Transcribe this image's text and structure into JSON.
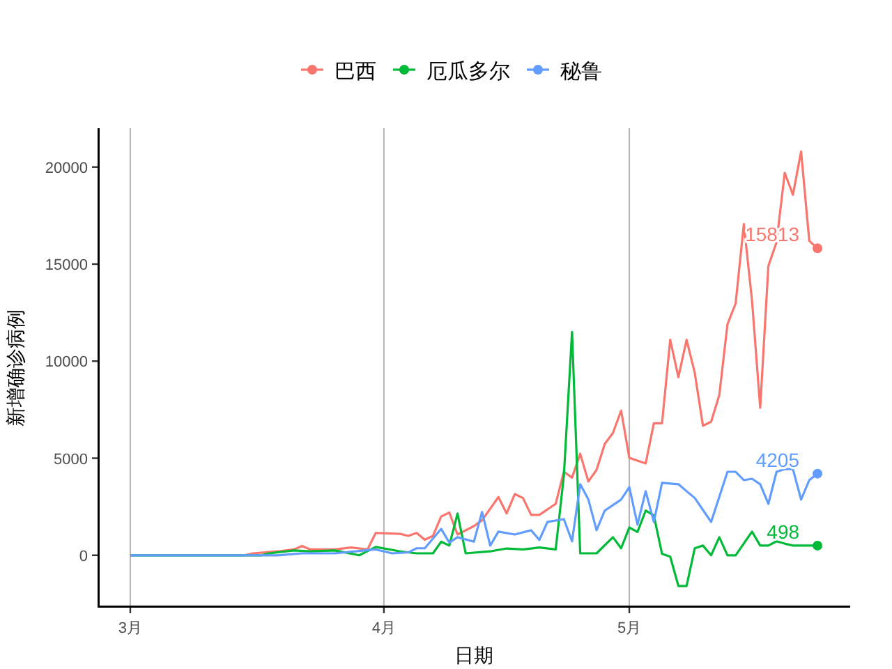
{
  "chart_data": {
    "type": "line",
    "xlabel": "日期",
    "ylabel": "新增确诊病例",
    "legend": "top",
    "grid": "x",
    "xlim": [
      "--02-25",
      "--05-28"
    ],
    "ylim": [
      -2700,
      22000
    ],
    "xticks": [
      {
        "value": "--03-01",
        "label": "3月"
      },
      {
        "value": "--04-01",
        "label": "4月"
      },
      {
        "value": "--05-01",
        "label": "5月"
      }
    ],
    "yticks": [
      0,
      5000,
      10000,
      15000,
      20000
    ],
    "series": [
      {
        "name": "巴西",
        "color": "#f8766d",
        "x": [
          "--03-01",
          "--03-15",
          "--03-16",
          "--03-19",
          "--03-21",
          "--03-22",
          "--03-23",
          "--03-26",
          "--03-28",
          "--03-30",
          "--03-31",
          "--04-03",
          "--04-04",
          "--04-05",
          "--04-06",
          "--04-07",
          "--04-08",
          "--04-09",
          "--04-10",
          "--04-12",
          "--04-13",
          "--04-15",
          "--04-16",
          "--04-17",
          "--04-18",
          "--04-19",
          "--04-20",
          "--04-22",
          "--04-23",
          "--04-24",
          "--04-25",
          "--04-26",
          "--04-27",
          "--04-28",
          "--04-29",
          "--04-30",
          "--05-01",
          "--05-03",
          "--05-04",
          "--05-05",
          "--05-06",
          "--05-07",
          "--05-08",
          "--05-09",
          "--05-10",
          "--05-11",
          "--05-12",
          "--05-13",
          "--05-14",
          "--05-15",
          "--05-16",
          "--05-17",
          "--05-18",
          "--05-19",
          "--05-20",
          "--05-21",
          "--05-22",
          "--05-23",
          "--05-24"
        ],
        "values": [
          0,
          0,
          100,
          200,
          300,
          480,
          300,
          300,
          400,
          300,
          1150,
          1100,
          1000,
          1150,
          800,
          1000,
          2000,
          2200,
          1070,
          1500,
          1800,
          3000,
          2150,
          3150,
          2950,
          2080,
          2080,
          2650,
          4300,
          4000,
          5230,
          3800,
          4400,
          5740,
          6300,
          7450,
          5020,
          4730,
          6800,
          6800,
          11100,
          9180,
          11100,
          9400,
          6670,
          6880,
          8250,
          11900,
          12980,
          17060,
          13120,
          7600,
          14900,
          16130,
          19700,
          18570,
          20800,
          16200,
          15813
        ]
      },
      {
        "name": "厄瓜多尔",
        "color": "#00ba38",
        "x": [
          "--03-01",
          "--03-17",
          "--03-18",
          "--03-21",
          "--03-23",
          "--03-26",
          "--03-29",
          "--03-31",
          "--04-03",
          "--04-05",
          "--04-07",
          "--04-08",
          "--04-09",
          "--04-10",
          "--04-11",
          "--04-14",
          "--04-16",
          "--04-18",
          "--04-20",
          "--04-22",
          "--04-23",
          "--04-24",
          "--04-25",
          "--04-27",
          "--04-29",
          "--04-30",
          "--05-01",
          "--05-02",
          "--05-03",
          "--05-04",
          "--05-05",
          "--05-06",
          "--05-07",
          "--05-08",
          "--05-09",
          "--05-10",
          "--05-11",
          "--05-12",
          "--05-13",
          "--05-14",
          "--05-16",
          "--05-17",
          "--05-18",
          "--05-19",
          "--05-20",
          "--05-21",
          "--05-22",
          "--05-24"
        ],
        "values": [
          0,
          0,
          100,
          250,
          200,
          250,
          0,
          430,
          200,
          100,
          100,
          700,
          500,
          2150,
          100,
          200,
          350,
          300,
          400,
          300,
          4100,
          11500,
          100,
          100,
          930,
          360,
          1430,
          1200,
          2300,
          2050,
          70,
          -70,
          -1580,
          -1580,
          360,
          500,
          0,
          930,
          0,
          0,
          1220,
          500,
          500,
          720,
          600,
          500,
          500,
          498
        ]
      },
      {
        "name": "秘鲁",
        "color": "#619cff",
        "x": [
          "--03-01",
          "--03-19",
          "--03-22",
          "--03-26",
          "--03-31",
          "--04-02",
          "--04-04",
          "--04-05",
          "--04-06",
          "--04-08",
          "--04-09",
          "--04-10",
          "--04-12",
          "--04-13",
          "--04-14",
          "--04-15",
          "--04-17",
          "--04-19",
          "--04-20",
          "--04-21",
          "--04-23",
          "--04-24",
          "--04-25",
          "--04-26",
          "--04-27",
          "--04-28",
          "--04-30",
          "--05-01",
          "--05-02",
          "--05-03",
          "--05-04",
          "--05-05",
          "--05-07",
          "--05-08",
          "--05-09",
          "--05-11",
          "--05-12",
          "--05-13",
          "--05-14",
          "--05-15",
          "--05-16",
          "--05-17",
          "--05-18",
          "--05-19",
          "--05-20",
          "--05-21",
          "--05-22",
          "--05-23",
          "--05-24"
        ],
        "values": [
          0,
          0,
          100,
          100,
          300,
          100,
          150,
          360,
          360,
          1360,
          650,
          930,
          700,
          2230,
          500,
          1220,
          1070,
          1290,
          790,
          1720,
          1860,
          720,
          3660,
          2870,
          1290,
          2300,
          2870,
          3510,
          1580,
          3300,
          1720,
          3730,
          3660,
          3300,
          2950,
          1720,
          3010,
          4300,
          4300,
          3870,
          3940,
          3660,
          2650,
          4300,
          4440,
          4440,
          2870,
          3870,
          4205
        ]
      }
    ],
    "annotations": [
      {
        "text": "15813",
        "x": "--05-24",
        "y": 15813
      },
      {
        "text": "4205",
        "x": "--05-24",
        "y": 4205
      },
      {
        "text": "498",
        "x": "--05-24",
        "y": 498
      }
    ]
  }
}
